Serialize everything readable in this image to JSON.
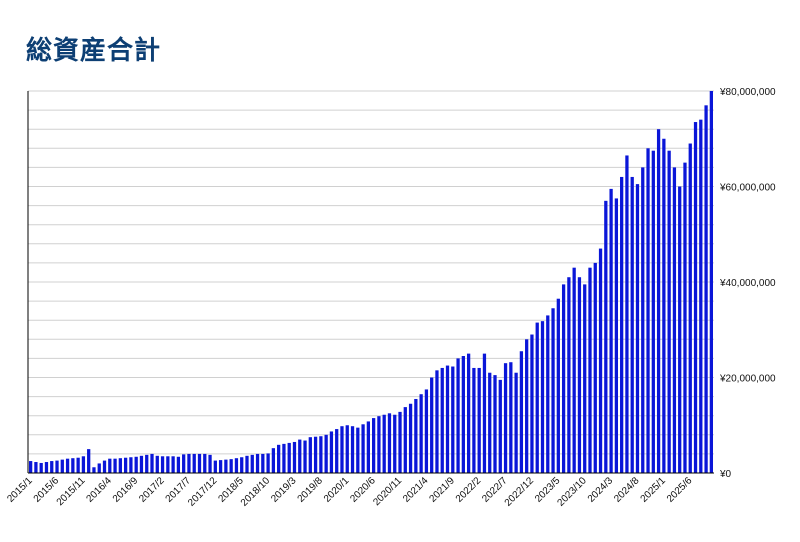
{
  "title": "総資産合計",
  "colors": {
    "bar": "#0a16d8",
    "grid": "#d0d0d0",
    "axis": "#000000",
    "title": "#0d3f74"
  },
  "chart_data": {
    "type": "bar",
    "title": "総資産合計",
    "xlabel": "",
    "ylabel": "",
    "ylim": [
      0,
      80000000
    ],
    "y_ticks": [
      0,
      20000000,
      40000000,
      60000000,
      80000000
    ],
    "y_tick_labels": [
      "¥0",
      "¥20,000,000",
      "¥40,000,000",
      "¥60,000,000",
      "¥80,000,000"
    ],
    "y_axis_side": "right",
    "grid": true,
    "legend": "none",
    "x_tick_labels": [
      "2015/1",
      "2015/6",
      "2015/11",
      "2016/4",
      "2016/9",
      "2017/2",
      "2017/7",
      "2017/12",
      "2018/5",
      "2018/10",
      "2019/3",
      "2019/8",
      "2020/1",
      "2020/6",
      "2020/11",
      "2021/4",
      "2021/9",
      "2022/2",
      "2022/7",
      "2022/12",
      "2023/5",
      "2023/10",
      "2024/3",
      "2024/8",
      "2025/1",
      "2025/6"
    ],
    "x_tick_every": 5,
    "categories_start": "2015/1",
    "categories_end": "2025/9",
    "values": [
      2500000,
      2300000,
      2100000,
      2300000,
      2500000,
      2600000,
      2800000,
      3000000,
      3100000,
      3200000,
      3500000,
      5000000,
      1200000,
      2000000,
      2600000,
      3000000,
      3000000,
      3100000,
      3200000,
      3300000,
      3400000,
      3600000,
      3800000,
      4000000,
      3600000,
      3500000,
      3500000,
      3500000,
      3400000,
      3900000,
      4000000,
      4000000,
      4000000,
      4000000,
      3800000,
      2600000,
      2700000,
      2800000,
      2900000,
      3100000,
      3300000,
      3600000,
      3800000,
      4000000,
      4000000,
      4100000,
      5200000,
      5900000,
      6100000,
      6300000,
      6500000,
      7000000,
      6800000,
      7500000,
      7600000,
      7700000,
      8000000,
      8700000,
      9200000,
      9800000,
      10000000,
      9800000,
      9500000,
      10200000,
      10800000,
      11500000,
      11900000,
      12200000,
      12500000,
      12200000,
      12800000,
      13800000,
      14500000,
      15500000,
      16500000,
      17500000,
      20000000,
      21500000,
      22000000,
      22500000,
      22300000,
      24000000,
      24500000,
      25000000,
      22000000,
      22000000,
      25000000,
      21000000,
      20500000,
      19500000,
      23000000,
      23200000,
      21000000,
      25500000,
      28000000,
      29000000,
      31500000,
      31800000,
      33000000,
      34500000,
      36500000,
      39500000,
      41000000,
      43000000,
      41000000,
      39500000,
      43000000,
      44000000,
      47000000,
      57000000,
      59500000,
      57500000,
      62000000,
      66500000,
      62000000,
      60500000,
      64000000,
      68000000,
      67500000,
      72000000,
      70000000,
      67500000,
      64000000,
      60000000,
      65000000,
      69000000,
      73500000,
      74000000,
      77000000,
      80000000
    ]
  }
}
